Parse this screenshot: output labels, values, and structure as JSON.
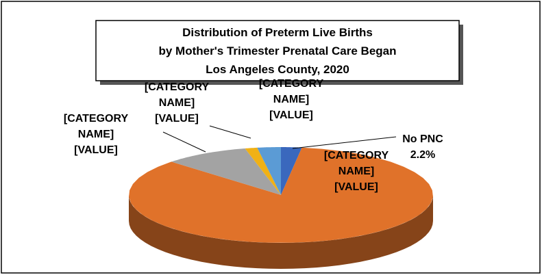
{
  "chart_data": {
    "type": "pie",
    "title": [
      "Distribution of Preterm Live Births",
      "by Mother's Trimester Prenatal Care Began",
      "Los Angeles County, 2020"
    ],
    "categories": [
      "No PNC",
      "[CATEGORY NAME]",
      "[CATEGORY NAME]",
      "[CATEGORY NAME]",
      "[CATEGORY NAME]"
    ],
    "values": [
      2.2,
      85,
      9,
      1.3,
      2.5
    ],
    "value_labels": [
      "2.2%",
      "[VALUE]",
      "[VALUE]",
      "[VALUE]",
      "[VALUE]"
    ],
    "colors": [
      "#3a68bd",
      "#e0722a",
      "#a3a3a3",
      "#f0b116",
      "#5b9bd5"
    ]
  }
}
